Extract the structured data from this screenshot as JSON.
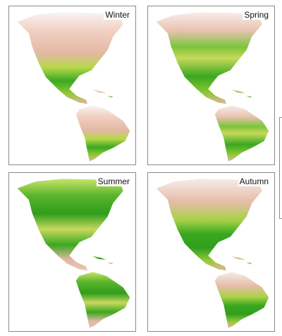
{
  "panels": [
    {
      "label": "Winter"
    },
    {
      "label": "Spring"
    },
    {
      "label": "Summer"
    },
    {
      "label": "Autumn"
    }
  ]
}
